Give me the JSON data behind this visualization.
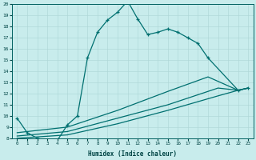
{
  "xlabel": "Humidex (Indice chaleur)",
  "bg_color": "#c8ecec",
  "grid_color": "#b0d8d8",
  "line_color": "#007070",
  "xlim": [
    -0.5,
    23.5
  ],
  "ylim": [
    8,
    20
  ],
  "xticks": [
    0,
    1,
    2,
    3,
    4,
    5,
    6,
    7,
    8,
    9,
    10,
    11,
    12,
    13,
    14,
    15,
    16,
    17,
    18,
    19,
    20,
    21,
    22,
    23
  ],
  "yticks": [
    8,
    9,
    10,
    11,
    12,
    13,
    14,
    15,
    16,
    17,
    18,
    19,
    20
  ],
  "main_x": [
    0,
    1,
    2,
    3,
    4,
    5,
    6,
    7,
    8,
    9,
    10,
    11,
    12,
    13,
    14,
    15,
    16,
    17,
    18,
    19,
    22,
    23
  ],
  "main_y": [
    9.8,
    8.5,
    8.0,
    7.8,
    7.8,
    9.2,
    10.0,
    15.2,
    17.5,
    18.6,
    19.3,
    20.3,
    18.7,
    17.3,
    17.5,
    17.8,
    17.5,
    17.0,
    16.5,
    15.2,
    12.3,
    12.5
  ],
  "line_a_x": [
    0,
    5,
    10,
    15,
    19,
    22,
    23
  ],
  "line_a_y": [
    8.5,
    9.0,
    10.5,
    12.2,
    13.5,
    12.3,
    12.5
  ],
  "line_b_x": [
    0,
    5,
    10,
    15,
    20,
    22,
    23
  ],
  "line_b_y": [
    8.2,
    8.6,
    9.8,
    11.0,
    12.5,
    12.3,
    12.5
  ],
  "line_c_x": [
    0,
    5,
    10,
    15,
    20,
    22,
    23
  ],
  "line_c_y": [
    8.0,
    8.3,
    9.3,
    10.5,
    11.8,
    12.3,
    12.5
  ]
}
